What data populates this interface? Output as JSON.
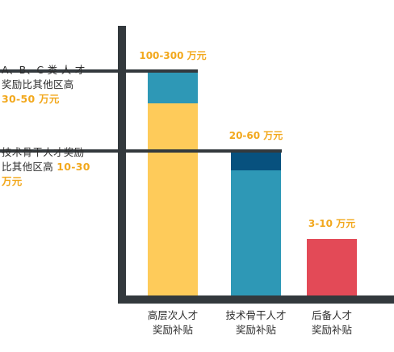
{
  "chart_data": {
    "type": "bar",
    "categories": [
      "高层次人才\n奖励补贴",
      "技术骨干人才\n奖励补贴",
      "后备人才\n奖励补贴"
    ],
    "value_labels": [
      "100-300 万元",
      "20-60 万元",
      "3-10 万元"
    ],
    "ranges": [
      [
        100,
        300
      ],
      [
        20,
        60
      ],
      [
        3,
        10
      ]
    ],
    "annotations": [
      {
        "text": "A、B、C 类 人 才\n奖励比其他区高",
        "highlight": "30-50 万元"
      },
      {
        "text": "技术骨干人才奖励\n比其他区高 ",
        "highlight": "10-30\n万元"
      }
    ],
    "colors": {
      "yellow": "#fecb5a",
      "teal": "#2e98b6",
      "navy": "#07517e",
      "red": "#e34a57",
      "axis": "#33393d",
      "label_orange": "#f2a81d",
      "text": "#2d2d2d"
    }
  }
}
